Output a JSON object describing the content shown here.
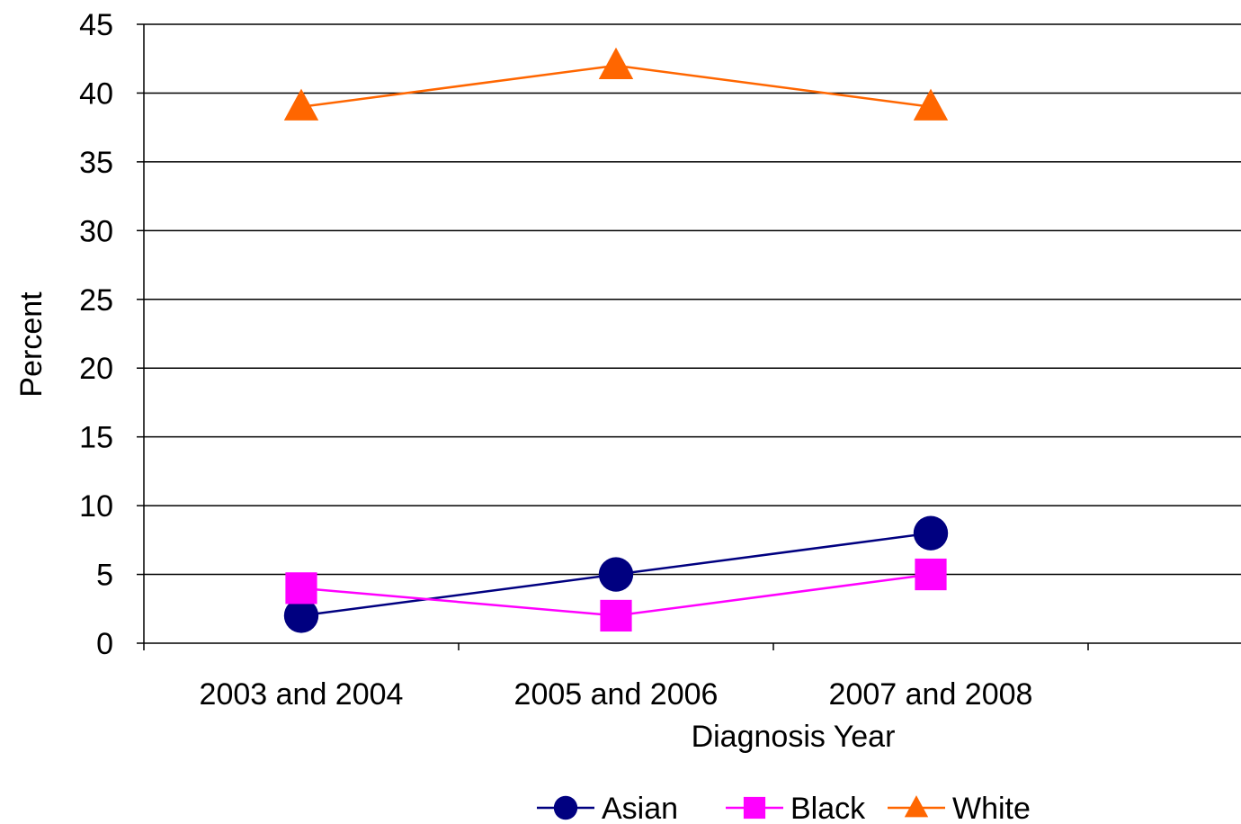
{
  "chart_data": {
    "type": "line",
    "xlabel": "Diagnosis Year",
    "ylabel": "Percent",
    "categories": [
      "2003 and 2004",
      "2005 and 2006",
      "2007 and 2008"
    ],
    "ylim": [
      0,
      45
    ],
    "yticks": [
      0,
      5,
      10,
      15,
      20,
      25,
      30,
      35,
      40,
      45
    ],
    "grid": "horizontal",
    "legend_position": "bottom",
    "series": [
      {
        "name": "Asian",
        "values": [
          2,
          5,
          8
        ],
        "color": "#000080",
        "marker": "circle"
      },
      {
        "name": "Black",
        "values": [
          4,
          2,
          5
        ],
        "color": "#ff00ff",
        "marker": "square"
      },
      {
        "name": "White",
        "values": [
          39,
          42,
          39
        ],
        "color": "#ff6600",
        "marker": "triangle"
      }
    ]
  }
}
